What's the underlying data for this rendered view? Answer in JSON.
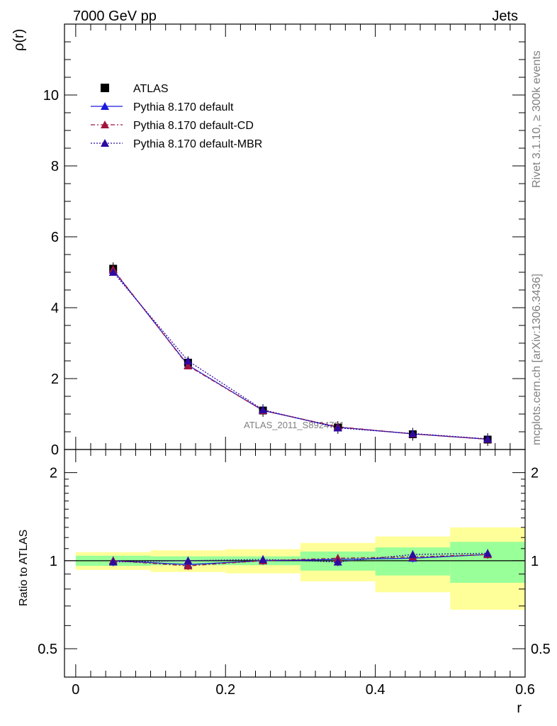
{
  "header": {
    "left_title": "7000 GeV pp",
    "right_title": "Jets"
  },
  "side_labels": {
    "rivet": "Rivet 3.1.10, ≥ 300k events",
    "mcplots": "mcplots.cern.ch [arXiv:1306.3436]"
  },
  "watermark": "ATLAS_2011_S8924791",
  "chart_data": [
    {
      "type": "line",
      "ylabel": "ρ(r)",
      "xlabel": "",
      "xlim": [
        -0.015,
        0.6
      ],
      "ylim": [
        0,
        12
      ],
      "y_ticks": [
        0,
        2,
        4,
        6,
        8,
        10
      ],
      "y_tick_labels": [
        "0",
        "2",
        "4",
        "6",
        "8",
        "10"
      ],
      "legend_position": "top-left",
      "data_series": {
        "name": "ATLAS",
        "x": [
          0.05,
          0.15,
          0.25,
          0.35,
          0.45,
          0.55
        ],
        "y": [
          5.1,
          2.45,
          1.1,
          0.62,
          0.43,
          0.28
        ],
        "color": "#000000",
        "marker": "square"
      },
      "series": [
        {
          "name": "Pythia 8.170 default",
          "x": [
            0.05,
            0.15,
            0.25,
            0.35,
            0.45,
            0.55
          ],
          "y": [
            5.06,
            2.38,
            1.1,
            0.63,
            0.44,
            0.29
          ],
          "color": "#1a1adc",
          "dash": "solid"
        },
        {
          "name": "Pythia 8.170 default-CD",
          "x": [
            0.05,
            0.15,
            0.25,
            0.35,
            0.45,
            0.55
          ],
          "y": [
            5.08,
            2.36,
            1.1,
            0.64,
            0.44,
            0.29
          ],
          "color": "#a0143c",
          "dash": "dashdot"
        },
        {
          "name": "Pythia 8.170 default-MBR",
          "x": [
            0.05,
            0.15,
            0.25,
            0.35,
            0.45,
            0.55
          ],
          "y": [
            5.0,
            2.5,
            1.12,
            0.61,
            0.45,
            0.3
          ],
          "color": "#2e0aa0",
          "dash": "dotted"
        }
      ]
    },
    {
      "type": "line",
      "ylabel": "Ratio to ATLAS",
      "xlabel": "r",
      "xlim": [
        -0.015,
        0.6
      ],
      "ylim": [
        0.4,
        2.4
      ],
      "y_ticks": [
        0.5,
        1,
        2
      ],
      "y_tick_labels": [
        "0.5",
        "1",
        "2"
      ],
      "x_ticks": [
        0,
        0.2,
        0.4,
        0.6
      ],
      "x_tick_labels": [
        "0",
        "0.2",
        "0.4",
        "0.6"
      ],
      "uncertainty_bands": [
        {
          "x0": 0.0,
          "x1": 0.1,
          "stat_lo": 0.96,
          "stat_hi": 1.04,
          "tot_lo": 0.93,
          "tot_hi": 1.07
        },
        {
          "x0": 0.1,
          "x1": 0.2,
          "stat_lo": 0.965,
          "stat_hi": 1.035,
          "tot_lo": 0.915,
          "tot_hi": 1.085
        },
        {
          "x0": 0.2,
          "x1": 0.3,
          "stat_lo": 0.965,
          "stat_hi": 1.035,
          "tot_lo": 0.905,
          "tot_hi": 1.095
        },
        {
          "x0": 0.3,
          "x1": 0.4,
          "stat_lo": 0.925,
          "stat_hi": 1.075,
          "tot_lo": 0.85,
          "tot_hi": 1.15
        },
        {
          "x0": 0.4,
          "x1": 0.5,
          "stat_lo": 0.89,
          "stat_hi": 1.11,
          "tot_lo": 0.78,
          "tot_hi": 1.21
        },
        {
          "x0": 0.5,
          "x1": 0.6,
          "stat_lo": 0.84,
          "stat_hi": 1.16,
          "tot_lo": 0.68,
          "tot_hi": 1.3
        }
      ],
      "series": [
        {
          "name": "Pythia 8.170 default",
          "x": [
            0.05,
            0.15,
            0.25,
            0.35,
            0.45,
            0.55
          ],
          "y": [
            1.0,
            0.97,
            1.0,
            1.01,
            1.02,
            1.05
          ],
          "color": "#1a1adc",
          "dash": "solid"
        },
        {
          "name": "Pythia 8.170 default-CD",
          "x": [
            0.05,
            0.15,
            0.25,
            0.35,
            0.45,
            0.55
          ],
          "y": [
            1.0,
            0.96,
            1.0,
            1.02,
            1.03,
            1.05
          ],
          "color": "#a0143c",
          "dash": "dashdot"
        },
        {
          "name": "Pythia 8.170 default-MBR",
          "x": [
            0.05,
            0.15,
            0.25,
            0.35,
            0.45,
            0.55
          ],
          "y": [
            0.99,
            1.0,
            1.01,
            0.99,
            1.05,
            1.06
          ],
          "color": "#2e0aa0",
          "dash": "dotted"
        }
      ]
    }
  ],
  "colors": {
    "stat_band": "#99ff99",
    "total_band": "#ffff99"
  }
}
